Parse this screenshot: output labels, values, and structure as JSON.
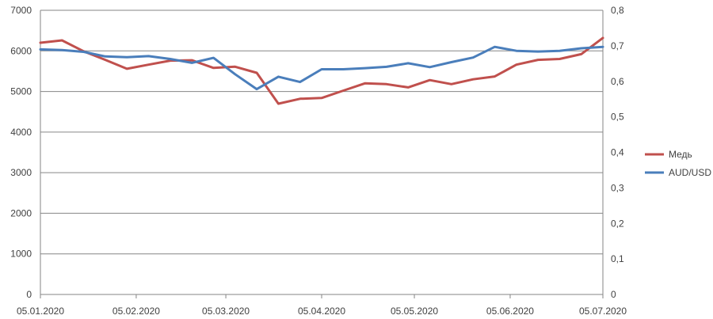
{
  "chart_data": {
    "type": "line",
    "x_tick_labels": [
      "05.01.2020",
      "05.02.2020",
      "05.03.2020",
      "05.04.2020",
      "05.05.2020",
      "05.06.2020",
      "05.07.2020"
    ],
    "y_left": {
      "ticks": [
        "0",
        "1000",
        "2000",
        "3000",
        "4000",
        "5000",
        "6000",
        "7000"
      ],
      "range": [
        0,
        7000
      ]
    },
    "y_right": {
      "ticks": [
        "0",
        "0,1",
        "0,2",
        "0,3",
        "0,4",
        "0,5",
        "0,6",
        "0,7",
        "0,8"
      ],
      "range": [
        0,
        0.8
      ]
    },
    "grid": "horizontal",
    "legend_position": "right",
    "x_range": [
      "2020-01-05",
      "2020-07-05"
    ],
    "series": [
      {
        "name": "Медь",
        "axis": "left",
        "color": "#c0504d",
        "points": [
          [
            "2020-01-05",
            6200
          ],
          [
            "2020-01-12",
            6260
          ],
          [
            "2020-01-19",
            5990
          ],
          [
            "2020-01-26",
            5780
          ],
          [
            "2020-02-02",
            5560
          ],
          [
            "2020-02-09",
            5660
          ],
          [
            "2020-02-16",
            5760
          ],
          [
            "2020-02-23",
            5770
          ],
          [
            "2020-03-01",
            5580
          ],
          [
            "2020-03-08",
            5610
          ],
          [
            "2020-03-15",
            5460
          ],
          [
            "2020-03-22",
            4700
          ],
          [
            "2020-03-29",
            4820
          ],
          [
            "2020-04-05",
            4840
          ],
          [
            "2020-04-12",
            5020
          ],
          [
            "2020-04-19",
            5200
          ],
          [
            "2020-04-26",
            5180
          ],
          [
            "2020-05-03",
            5100
          ],
          [
            "2020-05-10",
            5280
          ],
          [
            "2020-05-17",
            5180
          ],
          [
            "2020-05-24",
            5300
          ],
          [
            "2020-05-31",
            5370
          ],
          [
            "2020-06-07",
            5660
          ],
          [
            "2020-06-14",
            5780
          ],
          [
            "2020-06-21",
            5800
          ],
          [
            "2020-06-28",
            5920
          ],
          [
            "2020-07-05",
            6320
          ]
        ]
      },
      {
        "name": "AUD/USD",
        "axis": "right",
        "color": "#4a7ebb",
        "points": [
          [
            "2020-01-05",
            0.69
          ],
          [
            "2020-01-12",
            0.688
          ],
          [
            "2020-01-19",
            0.683
          ],
          [
            "2020-01-26",
            0.67
          ],
          [
            "2020-02-02",
            0.668
          ],
          [
            "2020-02-09",
            0.671
          ],
          [
            "2020-02-16",
            0.663
          ],
          [
            "2020-02-23",
            0.652
          ],
          [
            "2020-03-01",
            0.666
          ],
          [
            "2020-03-08",
            0.62
          ],
          [
            "2020-03-15",
            0.578
          ],
          [
            "2020-03-22",
            0.613
          ],
          [
            "2020-03-29",
            0.598
          ],
          [
            "2020-04-05",
            0.634
          ],
          [
            "2020-04-12",
            0.634
          ],
          [
            "2020-04-19",
            0.637
          ],
          [
            "2020-04-26",
            0.641
          ],
          [
            "2020-05-03",
            0.651
          ],
          [
            "2020-05-10",
            0.64
          ],
          [
            "2020-05-17",
            0.654
          ],
          [
            "2020-05-24",
            0.667
          ],
          [
            "2020-05-31",
            0.697
          ],
          [
            "2020-06-07",
            0.686
          ],
          [
            "2020-06-14",
            0.684
          ],
          [
            "2020-06-21",
            0.686
          ],
          [
            "2020-06-28",
            0.693
          ],
          [
            "2020-07-05",
            0.697
          ]
        ]
      }
    ]
  }
}
